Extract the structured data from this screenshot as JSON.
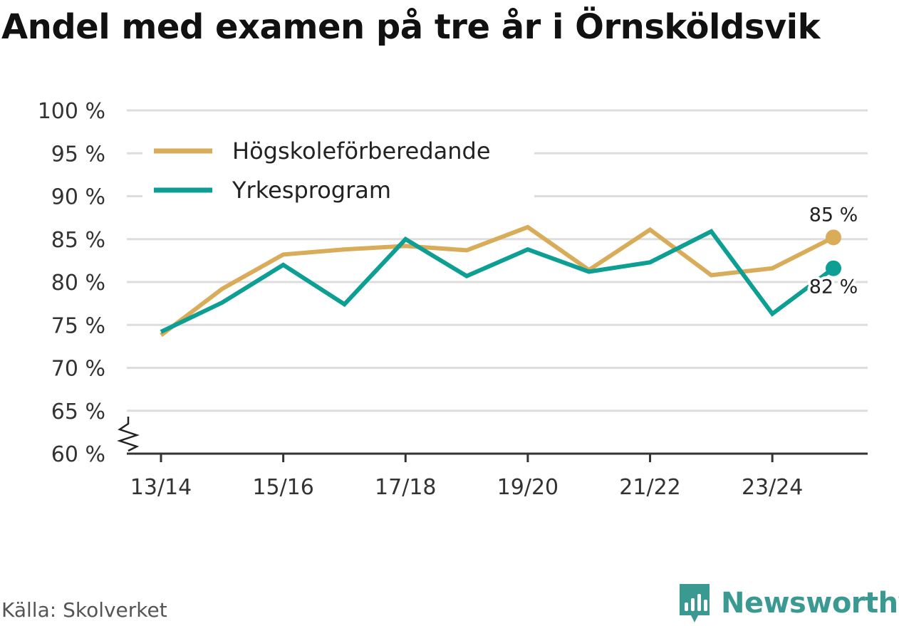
{
  "title": "Andel med examen på tre år i Örnsköldsvik",
  "source": "Källa: Skolverket",
  "brand": {
    "name": "Newsworthy",
    "icon": "chart-bubble-icon",
    "color": "#3a9a92"
  },
  "chart_data": {
    "type": "line",
    "title": "Andel med examen på tre år i Örnsköldsvik",
    "x": [
      "13/14",
      "14/15",
      "15/16",
      "16/17",
      "17/18",
      "18/19",
      "19/20",
      "20/21",
      "21/22",
      "22/23",
      "23/24",
      "24/25"
    ],
    "x_tick_labels": [
      "13/14",
      "15/16",
      "17/18",
      "19/20",
      "21/22",
      "23/24"
    ],
    "y_tick_labels": [
      "100 %",
      "95 %",
      "90 %",
      "85 %",
      "80 %",
      "75 %",
      "70 %",
      "65 %",
      "60 %"
    ],
    "ylim": [
      60,
      100
    ],
    "y_ticks": [
      60,
      65,
      70,
      75,
      80,
      85,
      90,
      95,
      100
    ],
    "y_axis_break": true,
    "grid": true,
    "legend": {
      "position": "top-left"
    },
    "series": [
      {
        "name": "Högskoleförberedande",
        "color": "#d9ac5a",
        "values": [
          73.8,
          79.2,
          83.2,
          83.8,
          84.2,
          83.7,
          86.4,
          81.4,
          86.1,
          80.8,
          81.6,
          85.2
        ],
        "end_label": "85 %"
      },
      {
        "name": "Yrkesprogram",
        "color": "#0d9e94",
        "values": [
          74.2,
          77.6,
          82.0,
          77.4,
          85.0,
          80.7,
          83.8,
          81.2,
          82.3,
          85.9,
          76.3,
          81.6
        ],
        "end_label": "82 %"
      }
    ]
  }
}
